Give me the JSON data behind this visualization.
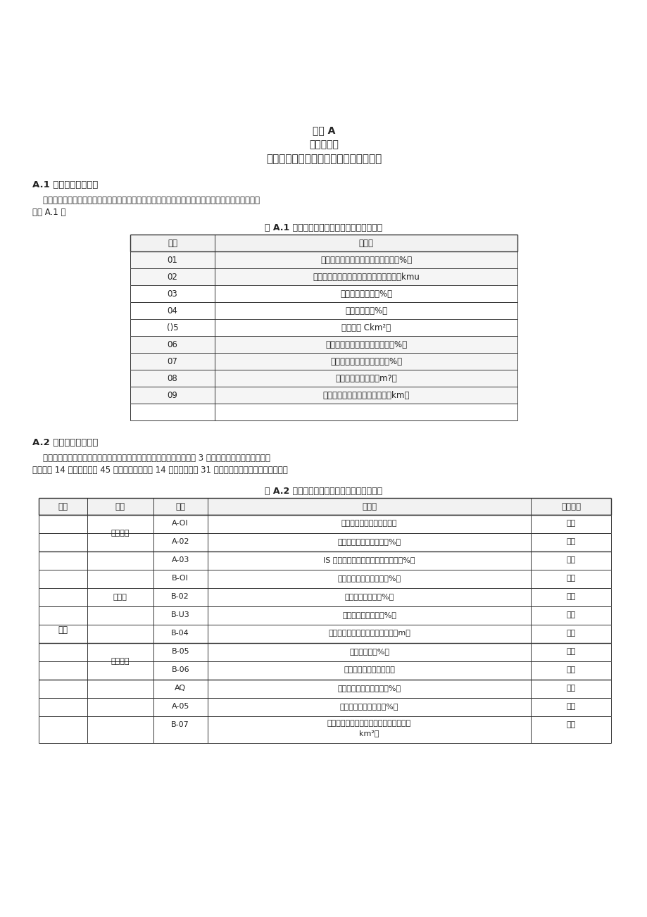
{
  "bg_color": "#ffffff",
  "page_title1": "附录 A",
  "page_title2": "（规范性）",
  "page_title3": "国土空间生态修复规划体检评估指标体系",
  "section1_title": "A.1 年度体检指标体系",
  "section1_para_line1": "    对于国土空间生态修复规划年度体检，可聚焦年度变量，选取部分代表性指标。年度体检指标可参见",
  "section1_para_line2": "下表 A.1 。",
  "table1_title": "表 A.1 国土空间生态修复规划年度体检指标表",
  "table1_header_col1": "序号",
  "table1_header_col2": "指标项",
  "table1_rows": [
    [
      "01",
      "重要江河湖泊水功能区水质达标率（%）"
    ],
    [
      "02",
      "生态保护红线范围内城乡建设用地面积（kmu"
    ],
    [
      "03",
      "自然岸线保有率（%）"
    ],
    [
      "04",
      "森林覆盖率（%）"
    ],
    [
      "()5",
      "耕地面积 Ckm²）"
    ],
    [
      "06",
      "历史遗留废弃矿山综合治理率（%）"
    ],
    [
      "07",
      "拆违腾退用地修复治理率（%）"
    ],
    [
      "08",
      "人均公园绿地面积（m?）"
    ],
    [
      "09",
      "城乡居民每万人拥有绿道长度（km）"
    ]
  ],
  "section2_title": "A.2 五年评估指标体系",
  "section2_para_line1": "    对于国土空间生态修复规划实施五年评估，按照安全、健康、和谐分为 3 个一级类别，在此基础上进一",
  "section2_para_line2": "步划分为 14 个二级类别和 45 项指标，其中包括 14 项基本指标和 31 项推荐指标。指标分级可参见下表",
  "table2_title": "表 A.2 国土空间生态修复规划五年评估指标表",
  "table2_headers": [
    "一级",
    "二级",
    "序号",
    "指标项",
    "指标类别"
  ],
  "table2_rows": [
    [
      "A-OI",
      "永久基本农田面积（万亩）",
      "基本"
    ],
    [
      "A-02",
      "受污染耕地安全利用率（%）",
      "基本"
    ],
    [
      "A-03",
      "IS 要江河湖泊水功能区水质达标率（%）",
      "基本"
    ],
    [
      "B-OI",
      "历史内涝积水点治理率（%）",
      "推荐"
    ],
    [
      "B-02",
      "防洪堤防达标率（%）",
      "推荐"
    ],
    [
      "B-U3",
      "地下水开发利用率（%）",
      "推荐"
    ],
    [
      "B-04",
      "平原区地下水平均埋深年度变化（m）",
      "推荐"
    ],
    [
      "B-05",
      "水土保持率（%）",
      "推荐"
    ],
    [
      "B-06",
      "地质灾害隐患点数（个）",
      "推荐"
    ],
    [
      "AQ",
      "生态保护红线面积占比（%）",
      "基本"
    ],
    [
      "A-05",
      "生态控制区面积占比（%）",
      "基本"
    ],
    [
      "B-07",
      "生态保护红线范围内城乡建设用地面积（\nkm²）",
      "推荐"
    ]
  ],
  "table2_level1": "安全",
  "table2_level2_groups": [
    {
      "label": "粮食安全",
      "rows": [
        0,
        1
      ]
    },
    {
      "label": "水安全",
      "rows": [
        2,
        3,
        4,
        5,
        6
      ]
    },
    {
      "label": "地质安全",
      "rows": [
        7,
        8
      ]
    },
    {
      "label": "",
      "rows": [
        9,
        10,
        11
      ]
    }
  ],
  "table1_shaded_rows": [
    0,
    1,
    5,
    6,
    7,
    8
  ],
  "table2_shaded_rows": []
}
